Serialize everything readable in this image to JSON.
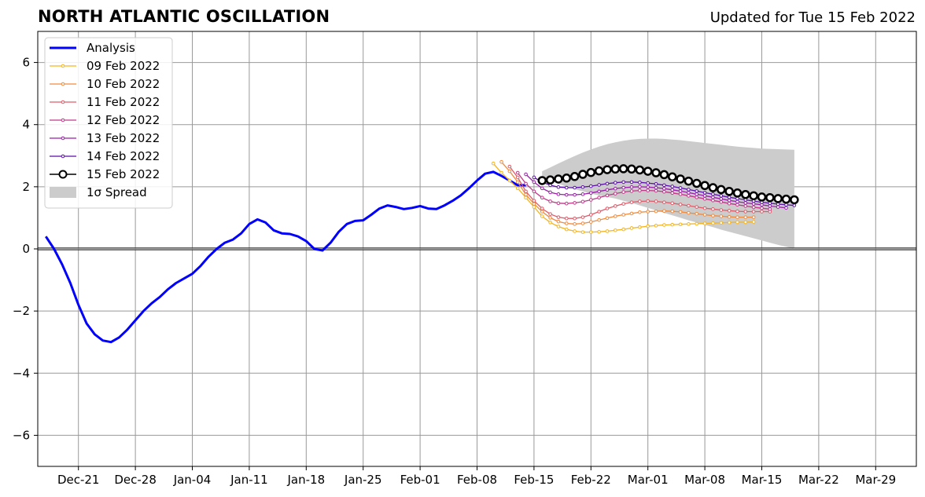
{
  "chart_data": {
    "type": "line",
    "title": "NORTH ATLANTIC OSCILLATION",
    "subtitle": "Updated for Tue 15 Feb 2022",
    "xlabel": "",
    "ylabel": "",
    "ylim": [
      -7,
      7
    ],
    "xlim": [
      "2021-12-16",
      "2022-04-03"
    ],
    "grid": true,
    "legend_position": "upper-left",
    "x_ticks": [
      "Dec-21",
      "Dec-28",
      "Jan-04",
      "Jan-11",
      "Jan-18",
      "Jan-25",
      "Feb-01",
      "Feb-08",
      "Feb-15",
      "Feb-22",
      "Mar-01",
      "Mar-08",
      "Mar-15",
      "Mar-22",
      "Mar-29"
    ],
    "x_tick_dates": [
      "2021-12-21",
      "2021-12-28",
      "2022-01-04",
      "2022-01-11",
      "2022-01-18",
      "2022-01-25",
      "2022-02-01",
      "2022-02-08",
      "2022-02-15",
      "2022-02-22",
      "2022-03-01",
      "2022-03-08",
      "2022-03-15",
      "2022-03-22",
      "2022-03-29"
    ],
    "y_ticks": [
      6,
      4,
      2,
      0,
      -2,
      -4,
      -6
    ],
    "y_tick_labels": [
      "6",
      "4",
      "2",
      "0",
      "−2",
      "−4",
      "−6"
    ],
    "analysis": {
      "name": "Analysis",
      "color": "#0000ff",
      "start_date": "2021-12-17",
      "values": [
        0.4,
        0.0,
        -0.5,
        -1.1,
        -1.8,
        -2.4,
        -2.75,
        -2.95,
        -3.0,
        -2.85,
        -2.6,
        -2.3,
        -2.0,
        -1.75,
        -1.55,
        -1.3,
        -1.1,
        -0.95,
        -0.8,
        -0.55,
        -0.25,
        0.0,
        0.2,
        0.3,
        0.5,
        0.8,
        0.95,
        0.85,
        0.6,
        0.5,
        0.48,
        0.4,
        0.25,
        0.0,
        -0.05,
        0.2,
        0.55,
        0.8,
        0.9,
        0.92,
        1.1,
        1.3,
        1.4,
        1.35,
        1.28,
        1.32,
        1.38,
        1.3,
        1.28,
        1.4,
        1.55,
        1.72,
        1.95,
        2.2,
        2.42,
        2.48,
        2.35,
        2.2,
        2.05,
        2.05
      ]
    },
    "forecasts": [
      {
        "name": "09 Feb 2022",
        "color": "#f5b41e",
        "start_date": "2022-02-10",
        "values": [
          2.75,
          2.45,
          2.2,
          1.95,
          1.65,
          1.35,
          1.05,
          0.85,
          0.72,
          0.63,
          0.57,
          0.54,
          0.54,
          0.55,
          0.57,
          0.6,
          0.63,
          0.67,
          0.7,
          0.73,
          0.75,
          0.77,
          0.78,
          0.79,
          0.8,
          0.81,
          0.82,
          0.83,
          0.84,
          0.85,
          0.86,
          0.86,
          0.87
        ]
      },
      {
        "name": "10 Feb 2022",
        "color": "#f08a3c",
        "start_date": "2022-02-11",
        "values": [
          2.8,
          2.5,
          2.15,
          1.75,
          1.45,
          1.2,
          1.0,
          0.88,
          0.82,
          0.8,
          0.82,
          0.87,
          0.93,
          0.99,
          1.05,
          1.1,
          1.14,
          1.18,
          1.2,
          1.21,
          1.22,
          1.21,
          1.19,
          1.16,
          1.13,
          1.1,
          1.07,
          1.05,
          1.03,
          1.02,
          1.02,
          1.02
        ]
      },
      {
        "name": "11 Feb 2022",
        "color": "#e05a68",
        "start_date": "2022-02-12",
        "values": [
          2.65,
          2.3,
          1.85,
          1.55,
          1.3,
          1.12,
          1.02,
          0.98,
          0.98,
          1.02,
          1.1,
          1.2,
          1.3,
          1.38,
          1.45,
          1.5,
          1.53,
          1.54,
          1.53,
          1.5,
          1.47,
          1.43,
          1.39,
          1.35,
          1.31,
          1.28,
          1.25,
          1.23,
          1.21,
          1.2,
          1.2,
          1.2,
          1.2
        ]
      },
      {
        "name": "12 Feb 2022",
        "color": "#c0388a",
        "start_date": "2022-02-13",
        "values": [
          2.45,
          2.1,
          1.85,
          1.65,
          1.53,
          1.47,
          1.46,
          1.48,
          1.52,
          1.58,
          1.65,
          1.72,
          1.78,
          1.83,
          1.86,
          1.88,
          1.88,
          1.87,
          1.84,
          1.8,
          1.76,
          1.71,
          1.66,
          1.61,
          1.56,
          1.51,
          1.46,
          1.42,
          1.38,
          1.34,
          1.31,
          1.28
        ]
      },
      {
        "name": "13 Feb 2022",
        "color": "#9a1fa8",
        "start_date": "2022-02-14",
        "values": [
          2.4,
          2.15,
          1.95,
          1.82,
          1.76,
          1.74,
          1.74,
          1.76,
          1.8,
          1.85,
          1.9,
          1.94,
          1.97,
          1.99,
          2.0,
          1.99,
          1.97,
          1.94,
          1.9,
          1.86,
          1.81,
          1.76,
          1.71,
          1.66,
          1.61,
          1.56,
          1.52,
          1.48,
          1.45,
          1.42,
          1.38,
          1.35,
          1.32
        ]
      },
      {
        "name": "14 Feb 2022",
        "color": "#5b0fa8",
        "start_date": "2022-02-15",
        "values": [
          2.3,
          2.15,
          2.05,
          1.99,
          1.97,
          1.97,
          1.99,
          2.02,
          2.06,
          2.1,
          2.13,
          2.15,
          2.15,
          2.14,
          2.12,
          2.09,
          2.05,
          2.01,
          1.96,
          1.91,
          1.86,
          1.81,
          1.76,
          1.71,
          1.66,
          1.62,
          1.58,
          1.54,
          1.5,
          1.47,
          1.44,
          1.42,
          1.4
        ]
      },
      {
        "name": "15 Feb 2022",
        "color": "#000000",
        "start_date": "2022-02-16",
        "values": [
          2.2,
          2.22,
          2.25,
          2.28,
          2.33,
          2.4,
          2.46,
          2.51,
          2.55,
          2.57,
          2.58,
          2.57,
          2.54,
          2.5,
          2.45,
          2.39,
          2.32,
          2.25,
          2.18,
          2.11,
          2.04,
          1.97,
          1.91,
          1.85,
          1.8,
          1.75,
          1.71,
          1.67,
          1.65,
          1.62,
          1.6,
          1.58
        ]
      }
    ],
    "spread": {
      "name": "1σ Spread",
      "color": "#cccccc",
      "start_date": "2022-02-16",
      "upper": [
        2.5,
        2.62,
        2.75,
        2.87,
        2.99,
        3.1,
        3.2,
        3.29,
        3.37,
        3.43,
        3.48,
        3.52,
        3.54,
        3.55,
        3.55,
        3.54,
        3.52,
        3.5,
        3.47,
        3.44,
        3.41,
        3.38,
        3.35,
        3.32,
        3.29,
        3.27,
        3.25,
        3.23,
        3.22,
        3.21,
        3.2,
        3.19
      ],
      "lower": [
        2.3,
        2.2,
        2.1,
        2.0,
        1.92,
        1.85,
        1.78,
        1.72,
        1.67,
        1.62,
        1.55,
        1.48,
        1.4,
        1.32,
        1.24,
        1.16,
        1.08,
        1.0,
        0.92,
        0.85,
        0.77,
        0.7,
        0.62,
        0.55,
        0.48,
        0.41,
        0.34,
        0.27,
        0.2,
        0.13,
        0.07,
        0.0
      ]
    }
  }
}
